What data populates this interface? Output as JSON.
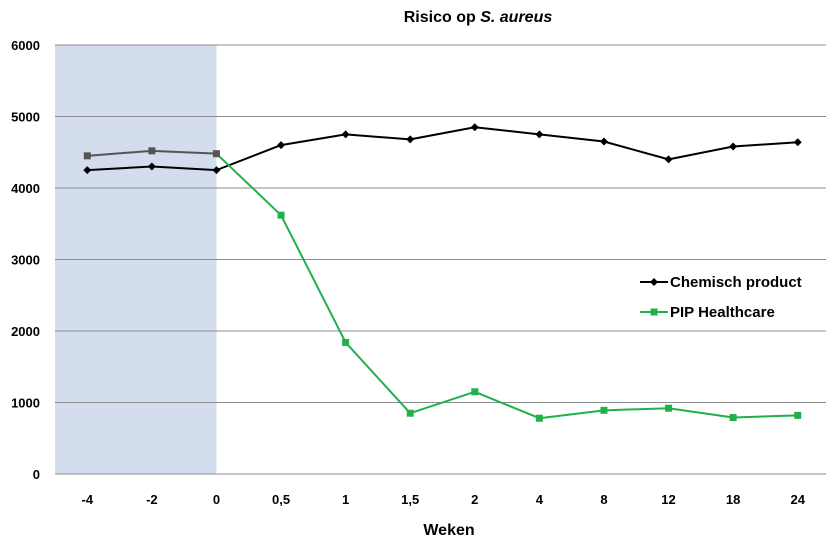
{
  "chart_data": {
    "type": "line",
    "title_prefix": "Risico op ",
    "title_italic": "S. aureus",
    "xlabel": "Weken",
    "ylabel": "",
    "categories": [
      "-4",
      "-2",
      "0",
      "0,5",
      "1",
      "1,5",
      "2",
      "4",
      "8",
      "12",
      "18",
      "24"
    ],
    "ylim": [
      0,
      6000
    ],
    "yticks": [
      0,
      1000,
      2000,
      3000,
      4000,
      5000,
      6000
    ],
    "grid": true,
    "legend_position": "right",
    "shaded_region": {
      "from_category": "-4",
      "to_category": "0",
      "color": "#d3dded"
    },
    "series": [
      {
        "name": "Chemisch product",
        "color": "#000000",
        "marker": "diamond",
        "values": [
          4250,
          4300,
          4250,
          4600,
          4750,
          4680,
          4850,
          4750,
          4650,
          4400,
          4580,
          4640
        ]
      },
      {
        "name": "PIP Healthcare",
        "color": "#22b04b",
        "marker": "square",
        "baseline_color": "#555555",
        "values": [
          4450,
          4520,
          4480,
          3620,
          1840,
          850,
          1150,
          780,
          890,
          920,
          790,
          820
        ]
      }
    ]
  }
}
